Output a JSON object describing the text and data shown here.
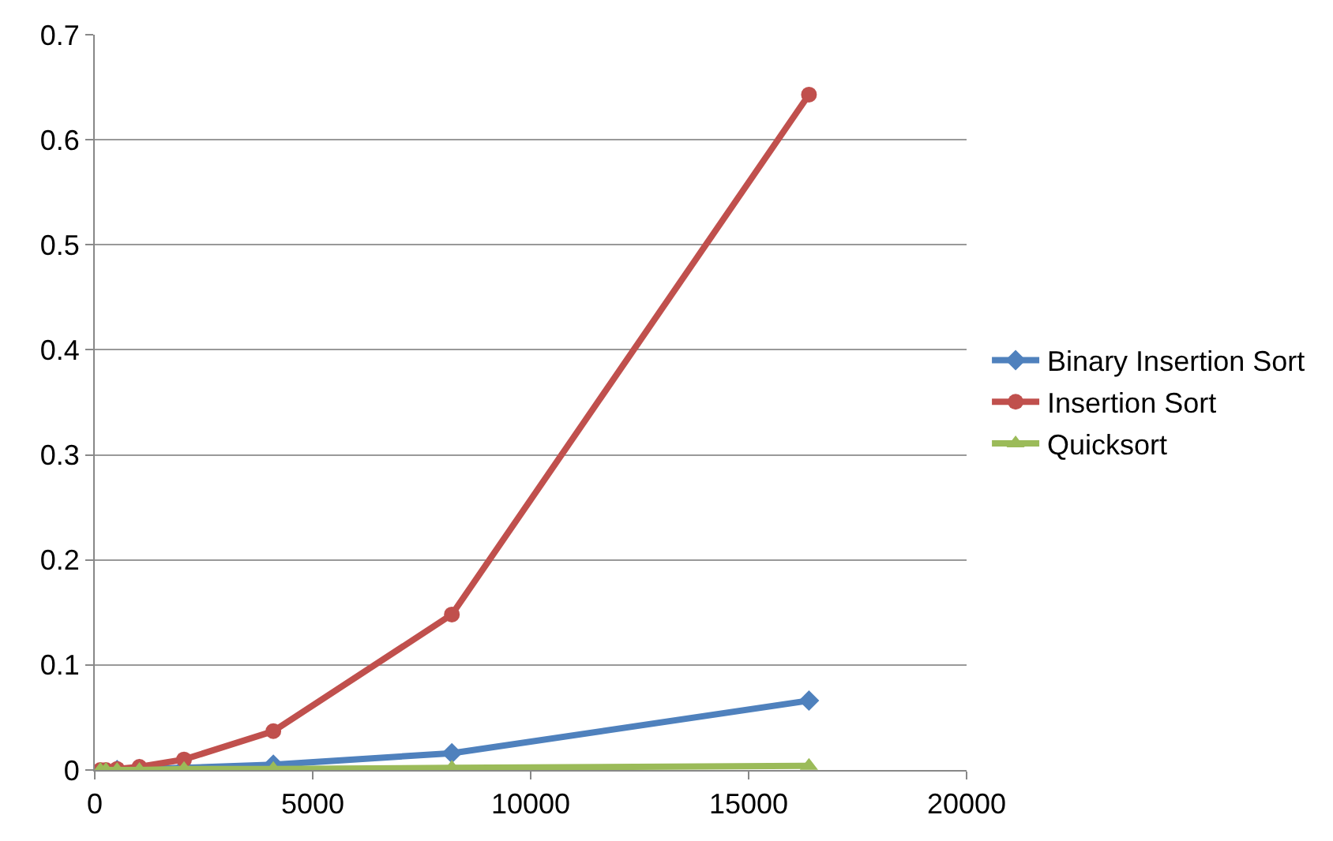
{
  "chart_data": {
    "type": "line",
    "x": [
      128,
      256,
      512,
      1024,
      2048,
      4096,
      8192,
      16384
    ],
    "series": [
      {
        "name": "Binary Insertion Sort",
        "color": "#4f81bd",
        "marker": "diamond",
        "values": [
          null,
          null,
          0,
          0.001,
          0.002,
          0.005,
          0.016,
          0.066
        ]
      },
      {
        "name": "Insertion Sort",
        "color": "#c0504d",
        "marker": "circle",
        "values": [
          0,
          0,
          0.001,
          0.003,
          0.01,
          0.037,
          0.148,
          0.643
        ]
      },
      {
        "name": "Quicksort",
        "color": "#9bbb59",
        "marker": "triangle",
        "values": [
          0,
          0,
          0,
          0,
          0.001,
          0.001,
          0.002,
          0.004
        ]
      }
    ],
    "xlim": [
      0,
      20000
    ],
    "xticks": [
      0,
      5000,
      10000,
      15000,
      20000
    ],
    "ylim": [
      0,
      0.7
    ],
    "yticks": [
      0,
      0.1,
      0.2,
      0.3,
      0.4,
      0.5,
      0.6,
      0.7
    ],
    "grid": "y",
    "legend": "right"
  }
}
